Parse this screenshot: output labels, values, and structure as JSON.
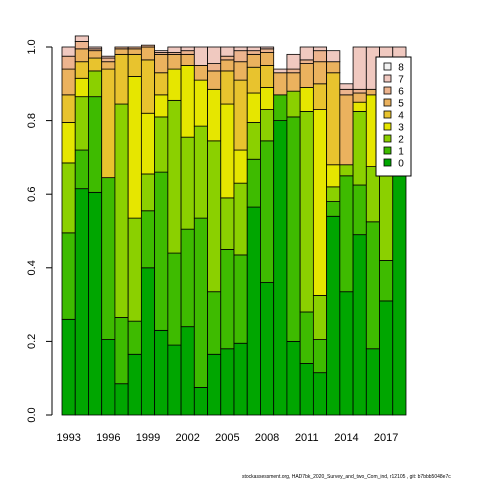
{
  "footnote": "stockassessment.org, HAD7bk_2020_Survey_and_two_Com_ind, r12105 , git: b7bbb5048e7c",
  "chart_data": {
    "type": "bar",
    "stacked": true,
    "ylim": [
      0,
      1
    ],
    "yticks": [
      0.0,
      0.2,
      0.4,
      0.6,
      0.8,
      1.0
    ],
    "ytick_labels": [
      "0.0",
      "0.2",
      "0.4",
      "0.6",
      "0.8",
      "1.0"
    ],
    "categories": [
      1993,
      1994,
      1995,
      1996,
      1997,
      1998,
      1999,
      2000,
      2001,
      2002,
      2003,
      2004,
      2005,
      2006,
      2007,
      2008,
      2009,
      2010,
      2011,
      2012,
      2013,
      2014,
      2015,
      2016,
      2017,
      2018
    ],
    "xtick_labels": [
      "1993",
      "1996",
      "1999",
      "2002",
      "2005",
      "2008",
      "2011",
      "2014",
      "2017"
    ],
    "xtick_years": [
      1993,
      1996,
      1999,
      2002,
      2005,
      2008,
      2011,
      2014,
      2017
    ],
    "legend_position": "top-right",
    "series": [
      {
        "name": "0",
        "color": "#00A600",
        "values": [
          0.26,
          0.615,
          0.605,
          0.205,
          0.085,
          0.165,
          0.4,
          0.23,
          0.19,
          0.24,
          0.075,
          0.165,
          0.18,
          0.195,
          0.565,
          0.36,
          0.8,
          0.2,
          0.14,
          0.115,
          0.54,
          0.335,
          0.49,
          0.18,
          0.31,
          0.67
        ]
      },
      {
        "name": "1",
        "color": "#3EBB00",
        "values": [
          0.235,
          0.105,
          0.26,
          0.44,
          0.18,
          0.09,
          0.155,
          0.43,
          0.25,
          0.265,
          0.46,
          0.17,
          0.27,
          0.24,
          0.13,
          0.385,
          0.07,
          0.61,
          0.14,
          0.09,
          0.04,
          0.315,
          0.135,
          0.345,
          0.11,
          0.0
        ]
      },
      {
        "name": "2",
        "color": "#8BD000",
        "values": [
          0.19,
          0.145,
          0.07,
          0.0,
          0.58,
          0.28,
          0.1,
          0.15,
          0.415,
          0.25,
          0.25,
          0.41,
          0.14,
          0.195,
          0.1,
          0.085,
          0.0,
          0.07,
          0.545,
          0.12,
          0.04,
          0.03,
          0.2,
          0.15,
          0.25,
          0.0
        ]
      },
      {
        "name": "3",
        "color": "#E6E600",
        "values": [
          0.11,
          0.05,
          0.0,
          0.0,
          0.0,
          0.385,
          0.165,
          0.06,
          0.085,
          0.195,
          0.125,
          0.14,
          0.255,
          0.09,
          0.08,
          0.06,
          0.0,
          0.0,
          0.065,
          0.505,
          0.06,
          0.0,
          0.025,
          0.195,
          0.0,
          0.0
        ]
      },
      {
        "name": "4",
        "color": "#E8C32E",
        "values": [
          0.075,
          0.045,
          0.035,
          0.295,
          0.135,
          0.06,
          0.145,
          0.06,
          0.0,
          0.0,
          0.0,
          0.0,
          0.09,
          0.19,
          0.07,
          0.06,
          0.0,
          0.0,
          0.0,
          0.07,
          0.25,
          0.0,
          0.0,
          0.0,
          0.0,
          0.0
        ]
      },
      {
        "name": "5",
        "color": "#EBB25E",
        "values": [
          0.07,
          0.035,
          0.02,
          0.02,
          0.015,
          0.015,
          0.035,
          0.05,
          0.04,
          0.03,
          0.04,
          0.05,
          0.03,
          0.05,
          0.035,
          0.035,
          0.06,
          0.05,
          0.065,
          0.06,
          0.03,
          0.19,
          0.025,
          0.015,
          0.0,
          0.0
        ]
      },
      {
        "name": "6",
        "color": "#EDB48E",
        "values": [
          0.035,
          0.02,
          0.005,
          0.01,
          0.005,
          0.005,
          0.005,
          0.005,
          0.005,
          0.01,
          0.0,
          0.02,
          0.01,
          0.03,
          0.01,
          0.01,
          0.0,
          0.01,
          0.01,
          0.03,
          0.0,
          0.015,
          0.01,
          0.0,
          0.0,
          0.0
        ]
      },
      {
        "name": "7",
        "color": "#F0C9C0",
        "values": [
          0.025,
          0.015,
          0.005,
          0.005,
          0.0,
          0.0,
          0.0,
          0.005,
          0.015,
          0.01,
          0.05,
          0.045,
          0.025,
          0.01,
          0.01,
          0.005,
          0.01,
          0.04,
          0.035,
          0.01,
          0.03,
          0.015,
          0.115,
          0.115,
          0.33,
          0.33
        ]
      },
      {
        "name": "8",
        "color": "#F2F2F2",
        "values": [
          0.0,
          0.0,
          0.0,
          0.0,
          0.0,
          0.0,
          0.0,
          0.0,
          0.0,
          0.0,
          0.0,
          0.0,
          0.0,
          0.0,
          0.0,
          0.0,
          0.0,
          0.0,
          0.0,
          0.0,
          0.0,
          0.0,
          0.0,
          0.0,
          0.0,
          0.0
        ]
      }
    ]
  }
}
